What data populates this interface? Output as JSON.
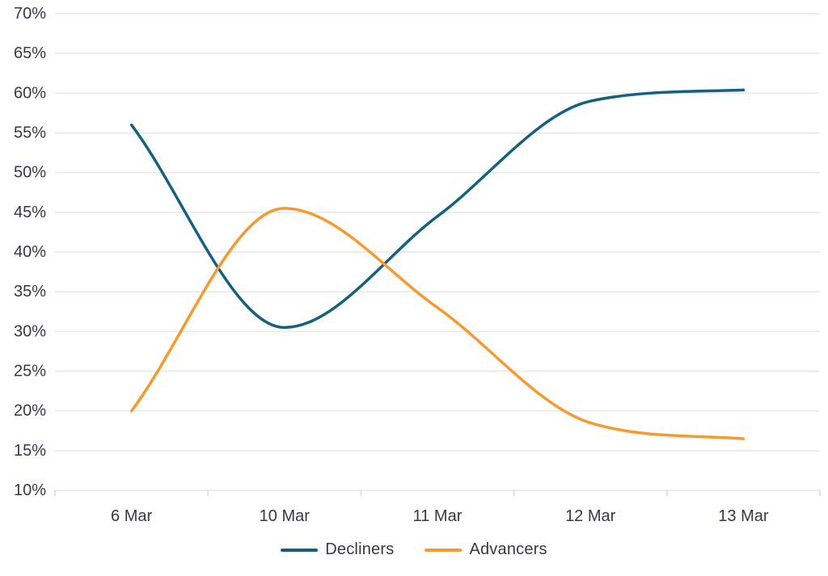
{
  "chart_data": {
    "type": "line",
    "curve": "smooth",
    "title": "",
    "xlabel": "",
    "ylabel": "",
    "categories": [
      "6 Mar",
      "10 Mar",
      "11 Mar",
      "12 Mar",
      "13 Mar"
    ],
    "series": [
      {
        "name": "Decliners",
        "color": "#13607F",
        "values": [
          56,
          30.5,
          44.5,
          59,
          60.4
        ]
      },
      {
        "name": "Advancers",
        "color": "#F8992E",
        "values": [
          20,
          45.5,
          33,
          18.5,
          16.5
        ]
      }
    ],
    "ylim": [
      10,
      70
    ],
    "ytick_step": 5,
    "ytick_labels": [
      "70%",
      "65%",
      "60%",
      "55%",
      "50%",
      "45%",
      "40%",
      "35%",
      "30%",
      "25%",
      "20%",
      "15%",
      "10%"
    ],
    "grid": "horizontal-only",
    "legend_position": "bottom-center"
  },
  "style": {
    "background": "#ffffff",
    "grid_color": "#e7e7e7",
    "axis_color": "#d9d9d9",
    "text_color": "#373748",
    "line_width": 3.5
  }
}
